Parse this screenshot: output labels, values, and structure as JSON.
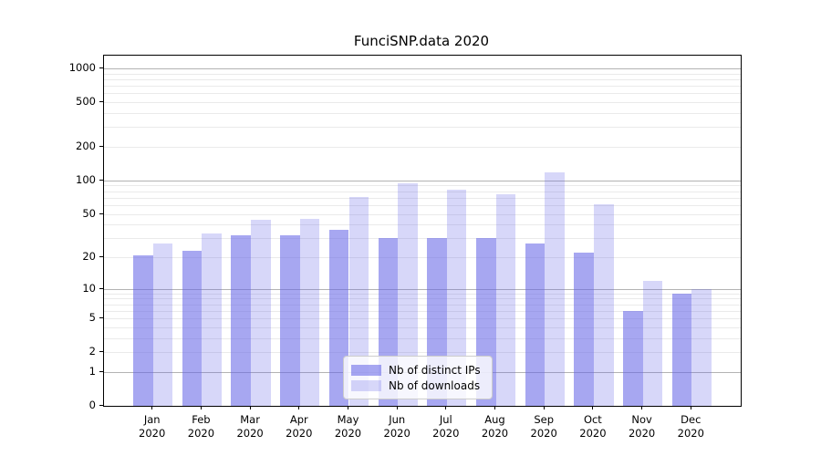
{
  "chart_data": {
    "type": "bar",
    "title": "FunciSNP.data 2020",
    "categories": [
      "Jan",
      "Feb",
      "Mar",
      "Apr",
      "May",
      "Jun",
      "Jul",
      "Aug",
      "Sep",
      "Oct",
      "Nov",
      "Dec"
    ],
    "year_label": "2020",
    "series": [
      {
        "name": "Nb of distinct IPs",
        "values": [
          21,
          23,
          32,
          32,
          36,
          30,
          30,
          30,
          27,
          22,
          6,
          9
        ]
      },
      {
        "name": "Nb of downloads",
        "values": [
          27,
          33,
          44,
          45,
          71,
          95,
          83,
          75,
          118,
          61,
          12,
          10
        ]
      }
    ],
    "y_ticks": [
      0,
      1,
      2,
      5,
      10,
      20,
      50,
      100,
      200,
      500,
      1000
    ],
    "y_scale": "log10(value+1)",
    "ylim": [
      0,
      1300
    ],
    "grid": "horizontal",
    "legend_position": "lower center",
    "colors": {
      "bar_base": "#6464e6",
      "distinct_ips_alpha": 0.57,
      "downloads_alpha": 0.26,
      "major_gridline": "#b3b3b3",
      "minor_gridline": "#eaeaea",
      "axis_line": "#000000",
      "text": "#000000",
      "legend_border": "#cccccc"
    }
  }
}
